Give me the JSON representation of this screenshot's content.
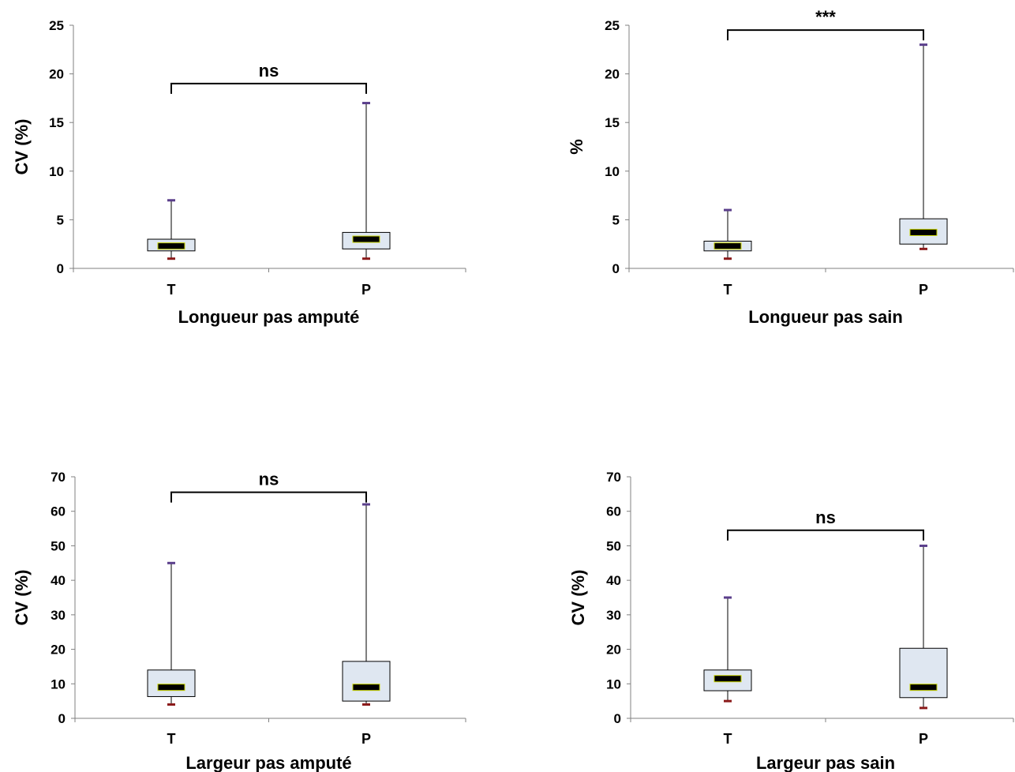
{
  "chart_data": [
    {
      "type": "boxplot",
      "xlabel": "Longueur pas amputé",
      "ylabel": "CV (%)",
      "ylim": [
        0,
        25
      ],
      "yticks": [
        0,
        5,
        10,
        15,
        20,
        25
      ],
      "categories": [
        "T",
        "P"
      ],
      "boxes": [
        {
          "category": "T",
          "min": 1,
          "q1": 1.8,
          "median": 2.3,
          "q3": 3.0,
          "max": 7
        },
        {
          "category": "P",
          "min": 1,
          "q1": 2.0,
          "median": 3.0,
          "q3": 3.7,
          "max": 17
        }
      ],
      "significance": {
        "label": "ns",
        "y": 19
      }
    },
    {
      "type": "boxplot",
      "xlabel": "Longueur pas sain",
      "ylabel": "%",
      "ylim": [
        0,
        25
      ],
      "yticks": [
        0,
        5,
        10,
        15,
        20,
        25
      ],
      "categories": [
        "T",
        "P"
      ],
      "boxes": [
        {
          "category": "T",
          "min": 1,
          "q1": 1.8,
          "median": 2.3,
          "q3": 2.8,
          "max": 6
        },
        {
          "category": "P",
          "min": 2,
          "q1": 2.5,
          "median": 3.7,
          "q3": 5.1,
          "max": 23
        }
      ],
      "significance": {
        "label": "***",
        "y": 24.5
      }
    },
    {
      "type": "boxplot",
      "xlabel": "Largeur pas amputé",
      "ylabel": "CV (%)",
      "ylim": [
        0,
        70
      ],
      "yticks": [
        0,
        10,
        20,
        30,
        40,
        50,
        60,
        70
      ],
      "categories": [
        "T",
        "P"
      ],
      "boxes": [
        {
          "category": "T",
          "min": 4,
          "q1": 6.3,
          "median": 9,
          "q3": 14,
          "max": 45
        },
        {
          "category": "P",
          "min": 4,
          "q1": 5,
          "median": 9,
          "q3": 16.5,
          "max": 62
        }
      ],
      "significance": {
        "label": "ns",
        "y": 65.5
      }
    },
    {
      "type": "boxplot",
      "xlabel": "Largeur pas sain",
      "ylabel": "CV (%)",
      "ylim": [
        0,
        70
      ],
      "yticks": [
        0,
        10,
        20,
        30,
        40,
        50,
        60,
        70
      ],
      "categories": [
        "T",
        "P"
      ],
      "boxes": [
        {
          "category": "T",
          "min": 5,
          "q1": 8,
          "median": 11.5,
          "q3": 14,
          "max": 35
        },
        {
          "category": "P",
          "min": 3,
          "q1": 6,
          "median": 9,
          "q3": 20.3,
          "max": 50
        }
      ],
      "significance": {
        "label": "ns",
        "y": 54.5
      }
    }
  ],
  "colors": {
    "box_fill": "#dfe7f1",
    "box_stroke": "#000000",
    "median_fill": "#000000",
    "median_outline": "#c8d400",
    "max_cap": "#5b3f8c",
    "min_cap": "#8b1a1a",
    "axis": "#808080"
  }
}
